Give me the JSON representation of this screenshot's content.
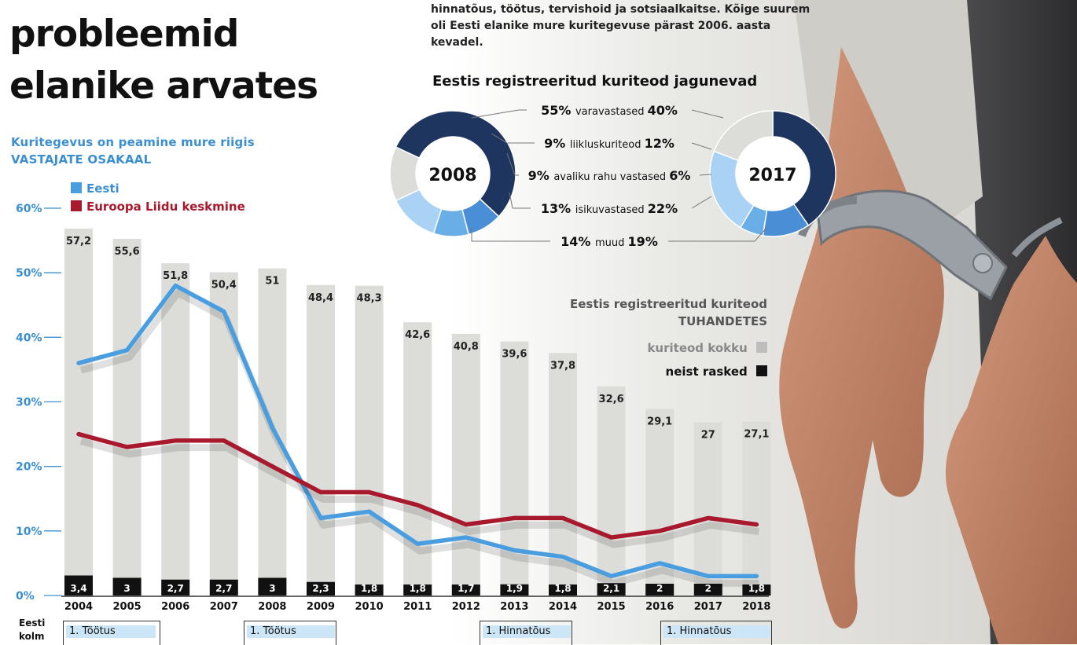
{
  "title": {
    "lines": [
      "probleemid",
      "elanike arvates"
    ]
  },
  "intro": {
    "lines": [
      "hinnatõus, töötus, tervishoid ja sotsiaalkaitse. Kõige suurem",
      "oli Eesti elanike mure kuritegevuse pärast 2006. aasta",
      "kevadel."
    ]
  },
  "main_chart": {
    "subtitle": "Kuritegevus on peamine mure riigis",
    "subtitle2": "VASTAJATE OSAKAAL",
    "legend": [
      {
        "name": "Eesti",
        "color": "#4a9ee0"
      },
      {
        "name": "Euroopa Liidu keskmine",
        "color": "#a8192e"
      }
    ]
  },
  "crime_legend": {
    "title": "Eestis registreeritud kuriteod",
    "subtitle": "TUHANDETES",
    "total_label": "kuriteod kokku",
    "serious_label": "neist rasked"
  },
  "donut": {
    "title": "Eestis  registreeritud kuriteod jagunevad",
    "year_left": "2008",
    "year_right": "2017"
  },
  "ranks": {
    "row_label_1": "Eesti",
    "row_label_2": "kolm",
    "items": [
      "1.  Töötus",
      "1.  Töötus",
      "1.  Hinnatõus",
      "1.  Hinnatõus"
    ]
  },
  "colors": {
    "bar": "#dcdcd8",
    "serious": "#111111",
    "estonia": "#4a9ee0",
    "eu": "#a8192e",
    "navy": "#1e3560",
    "skin": "#c0866a"
  },
  "chart_data": [
    {
      "type": "line",
      "title": "Kuritegevus on peamine mure riigis",
      "ylabel": "VASTAJATE OSAKAAL",
      "x": [
        "2004",
        "2005",
        "2006",
        "2007",
        "2008",
        "2009",
        "2010",
        "2011",
        "2012",
        "2013",
        "2014",
        "2015",
        "2016",
        "2017",
        "2018"
      ],
      "ylim": [
        0,
        60
      ],
      "yticks": [
        "0%",
        "10%",
        "20%",
        "30%",
        "40%",
        "50%",
        "60%"
      ],
      "series": [
        {
          "name": "Eesti",
          "values": [
            36,
            38,
            48,
            44,
            26,
            12,
            13,
            8,
            9,
            7,
            6,
            3,
            5,
            3,
            3
          ]
        },
        {
          "name": "Euroopa Liidu keskmine",
          "values": [
            25,
            23,
            24,
            24,
            20,
            16,
            16,
            14,
            11,
            12,
            12,
            9,
            10,
            12,
            11
          ]
        }
      ]
    },
    {
      "type": "bar",
      "title": "Eestis registreeritud kuriteod",
      "ylabel": "TUHANDETES",
      "categories": [
        "2004",
        "2005",
        "2006",
        "2007",
        "2008",
        "2009",
        "2010",
        "2011",
        "2012",
        "2013",
        "2014",
        "2015",
        "2016",
        "2017",
        "2018"
      ],
      "series": [
        {
          "name": "kuriteod kokku",
          "values": [
            57.2,
            55.6,
            51.8,
            50.4,
            51,
            48.4,
            48.3,
            42.6,
            40.8,
            39.6,
            37.8,
            32.6,
            29.1,
            27,
            27.1
          ],
          "labels": [
            "57,2",
            "55,6",
            "51,8",
            "50,4",
            "51",
            "48,4",
            "48,3",
            "42,6",
            "40,8",
            "39,6",
            "37,8",
            "32,6",
            "29,1",
            "27",
            "27,1"
          ]
        },
        {
          "name": "neist rasked",
          "values": [
            3.4,
            3,
            2.7,
            2.7,
            3,
            2.3,
            1.8,
            1.8,
            1.7,
            1.9,
            1.8,
            2.1,
            2,
            2,
            1.8
          ],
          "labels": [
            "3,4",
            "3",
            "2,7",
            "2,7",
            "3",
            "2,3",
            "1,8",
            "1,8",
            "1,7",
            "1,9",
            "1,8",
            "2,1",
            "2",
            "2",
            "1,8"
          ]
        }
      ]
    },
    {
      "type": "pie",
      "title": "Eestis  registreeritud kuriteod jagunevad",
      "categories": [
        "varavastased",
        "liikluskuriteod",
        "avaliku rahu vastased",
        "isikuvastased",
        "muud"
      ],
      "series": [
        {
          "name": "2008",
          "values": [
            55,
            9,
            9,
            13,
            14
          ],
          "labels": [
            "55%",
            "9%",
            "9%",
            "13%",
            "14%"
          ]
        },
        {
          "name": "2017",
          "values": [
            40,
            12,
            6,
            22,
            19
          ],
          "labels": [
            "40%",
            "12%",
            "6%",
            "22%",
            "19%"
          ]
        }
      ]
    }
  ]
}
